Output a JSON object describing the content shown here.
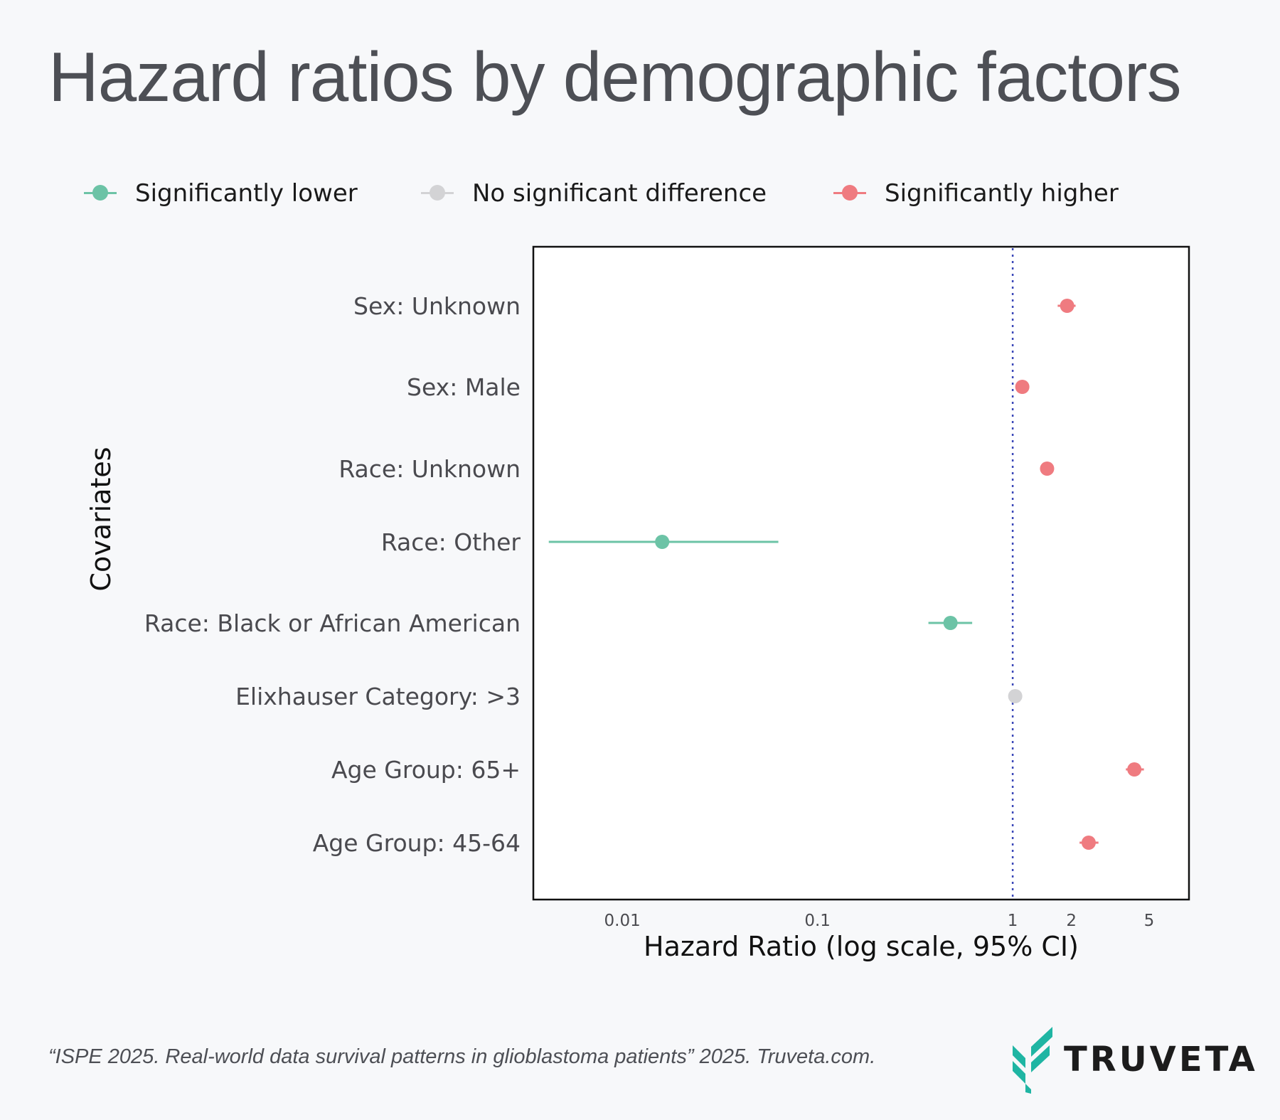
{
  "title": "Hazard ratios by demographic factors",
  "legend": [
    {
      "label": "Significantly lower",
      "color": "#6cc3a6"
    },
    {
      "label": "No significant difference",
      "color": "#d3d3d5"
    },
    {
      "label": "Significantly higher",
      "color": "#ef7b80"
    }
  ],
  "chart_data": {
    "type": "scatter",
    "title": "",
    "xlabel": "Hazard Ratio (log scale, 95% CI)",
    "ylabel": "Covariates",
    "x_scale": "log",
    "xlim": [
      0.0035,
      8
    ],
    "x_ticks": [
      {
        "value": 0.01,
        "label": "0.01"
      },
      {
        "value": 0.1,
        "label": "0.1"
      },
      {
        "value": 1,
        "label": "1"
      },
      {
        "value": 2,
        "label": "2"
      },
      {
        "value": 5,
        "label": "5"
      }
    ],
    "reference_line": {
      "x": 1,
      "style": "dotted",
      "color": "#3b47b8"
    },
    "grid": false,
    "legend_position": "top",
    "points": [
      {
        "covariate": "Sex: Unknown",
        "hr": 1.9,
        "ci_low": 1.7,
        "ci_high": 2.1,
        "group": "Significantly higher"
      },
      {
        "covariate": "Sex: Male",
        "hr": 1.12,
        "ci_low": 1.06,
        "ci_high": 1.18,
        "group": "Significantly higher"
      },
      {
        "covariate": "Race: Unknown",
        "hr": 1.5,
        "ci_low": 1.4,
        "ci_high": 1.6,
        "group": "Significantly higher"
      },
      {
        "covariate": "Race: Other",
        "hr": 0.016,
        "ci_low": 0.0042,
        "ci_high": 0.063,
        "group": "Significantly lower"
      },
      {
        "covariate": "Race: Black or African American",
        "hr": 0.48,
        "ci_low": 0.37,
        "ci_high": 0.62,
        "group": "Significantly lower"
      },
      {
        "covariate": "Elixhauser Category: >3",
        "hr": 1.03,
        "ci_low": 0.98,
        "ci_high": 1.08,
        "group": "No significant difference"
      },
      {
        "covariate": "Age Group: 65+",
        "hr": 4.2,
        "ci_low": 3.8,
        "ci_high": 4.7,
        "group": "Significantly higher"
      },
      {
        "covariate": "Age Group: 45-64",
        "hr": 2.45,
        "ci_low": 2.2,
        "ci_high": 2.75,
        "group": "Significantly higher"
      }
    ]
  },
  "source": "“ISPE 2025. Real-world data survival patterns in glioblastoma patients” 2025. Truveta.com.",
  "logo": {
    "wordmark": "TRUVETA",
    "color": "#1fb5a3"
  }
}
